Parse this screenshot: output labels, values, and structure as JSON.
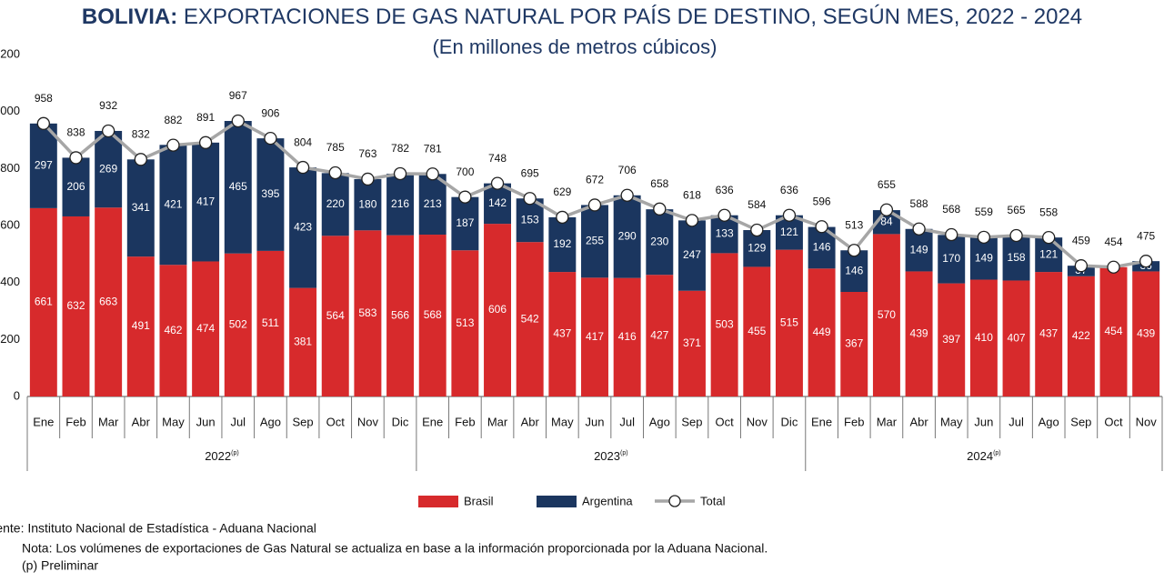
{
  "chart_data": {
    "type": "bar",
    "stacked": true,
    "title_bold": "BOLIVIA:",
    "title": "EXPORTACIONES DE GAS NATURAL POR PAÍS DE DESTINO, SEGÚN MES, 2022 - 2024",
    "subtitle": "(En millones de metros cúbicos)",
    "categories": [
      "Ene",
      "Feb",
      "Mar",
      "Abr",
      "May",
      "Jun",
      "Jul",
      "Ago",
      "Sep",
      "Oct",
      "Nov",
      "Dic",
      "Ene",
      "Feb",
      "Mar",
      "Abr",
      "May",
      "Jun",
      "Jul",
      "Ago",
      "Sep",
      "Oct",
      "Nov",
      "Dic",
      "Ene",
      "Feb",
      "Mar",
      "Abr",
      "May",
      "Jun",
      "Jul",
      "Ago",
      "Sep",
      "Oct",
      "Nov"
    ],
    "year_labels": [
      "2022",
      "2023",
      "2024"
    ],
    "year_note": "(p)",
    "series": [
      {
        "name": "Brasil",
        "type": "bar",
        "color": "#d72a2c",
        "values": [
          661,
          632,
          663,
          491,
          462,
          474,
          502,
          511,
          381,
          564,
          583,
          566,
          568,
          513,
          606,
          542,
          437,
          417,
          416,
          427,
          371,
          503,
          455,
          515,
          449,
          367,
          570,
          439,
          397,
          410,
          407,
          437,
          422,
          454,
          439
        ]
      },
      {
        "name": "Argentina",
        "type": "bar",
        "color": "#1b365f",
        "values": [
          297,
          206,
          269,
          341,
          421,
          417,
          465,
          395,
          423,
          220,
          180,
          216,
          213,
          187,
          142,
          153,
          192,
          255,
          290,
          230,
          247,
          133,
          129,
          121,
          146,
          146,
          84,
          149,
          170,
          149,
          158,
          121,
          37,
          null,
          36
        ]
      },
      {
        "name": "Total",
        "type": "line",
        "color": "#a6a6a6",
        "values": [
          958,
          838,
          932,
          832,
          882,
          891,
          967,
          906,
          804,
          785,
          763,
          782,
          781,
          700,
          748,
          695,
          629,
          672,
          706,
          658,
          618,
          636,
          584,
          636,
          596,
          513,
          655,
          588,
          568,
          559,
          565,
          558,
          459,
          454,
          475
        ]
      }
    ],
    "ylim": [
      0,
      1200
    ],
    "yticks": [
      0,
      200,
      400,
      600,
      800,
      1000,
      1200
    ],
    "grid": false,
    "legend": "bottom",
    "source": "Fuente: Instituto Nacional de Estadística - Aduana Nacional",
    "note": "Nota:  Los volúmenes de exportaciones de Gas Natural se actualiza en base a la información proporcionada por la Aduana Nacional.",
    "note2": "(p) Preliminar"
  }
}
